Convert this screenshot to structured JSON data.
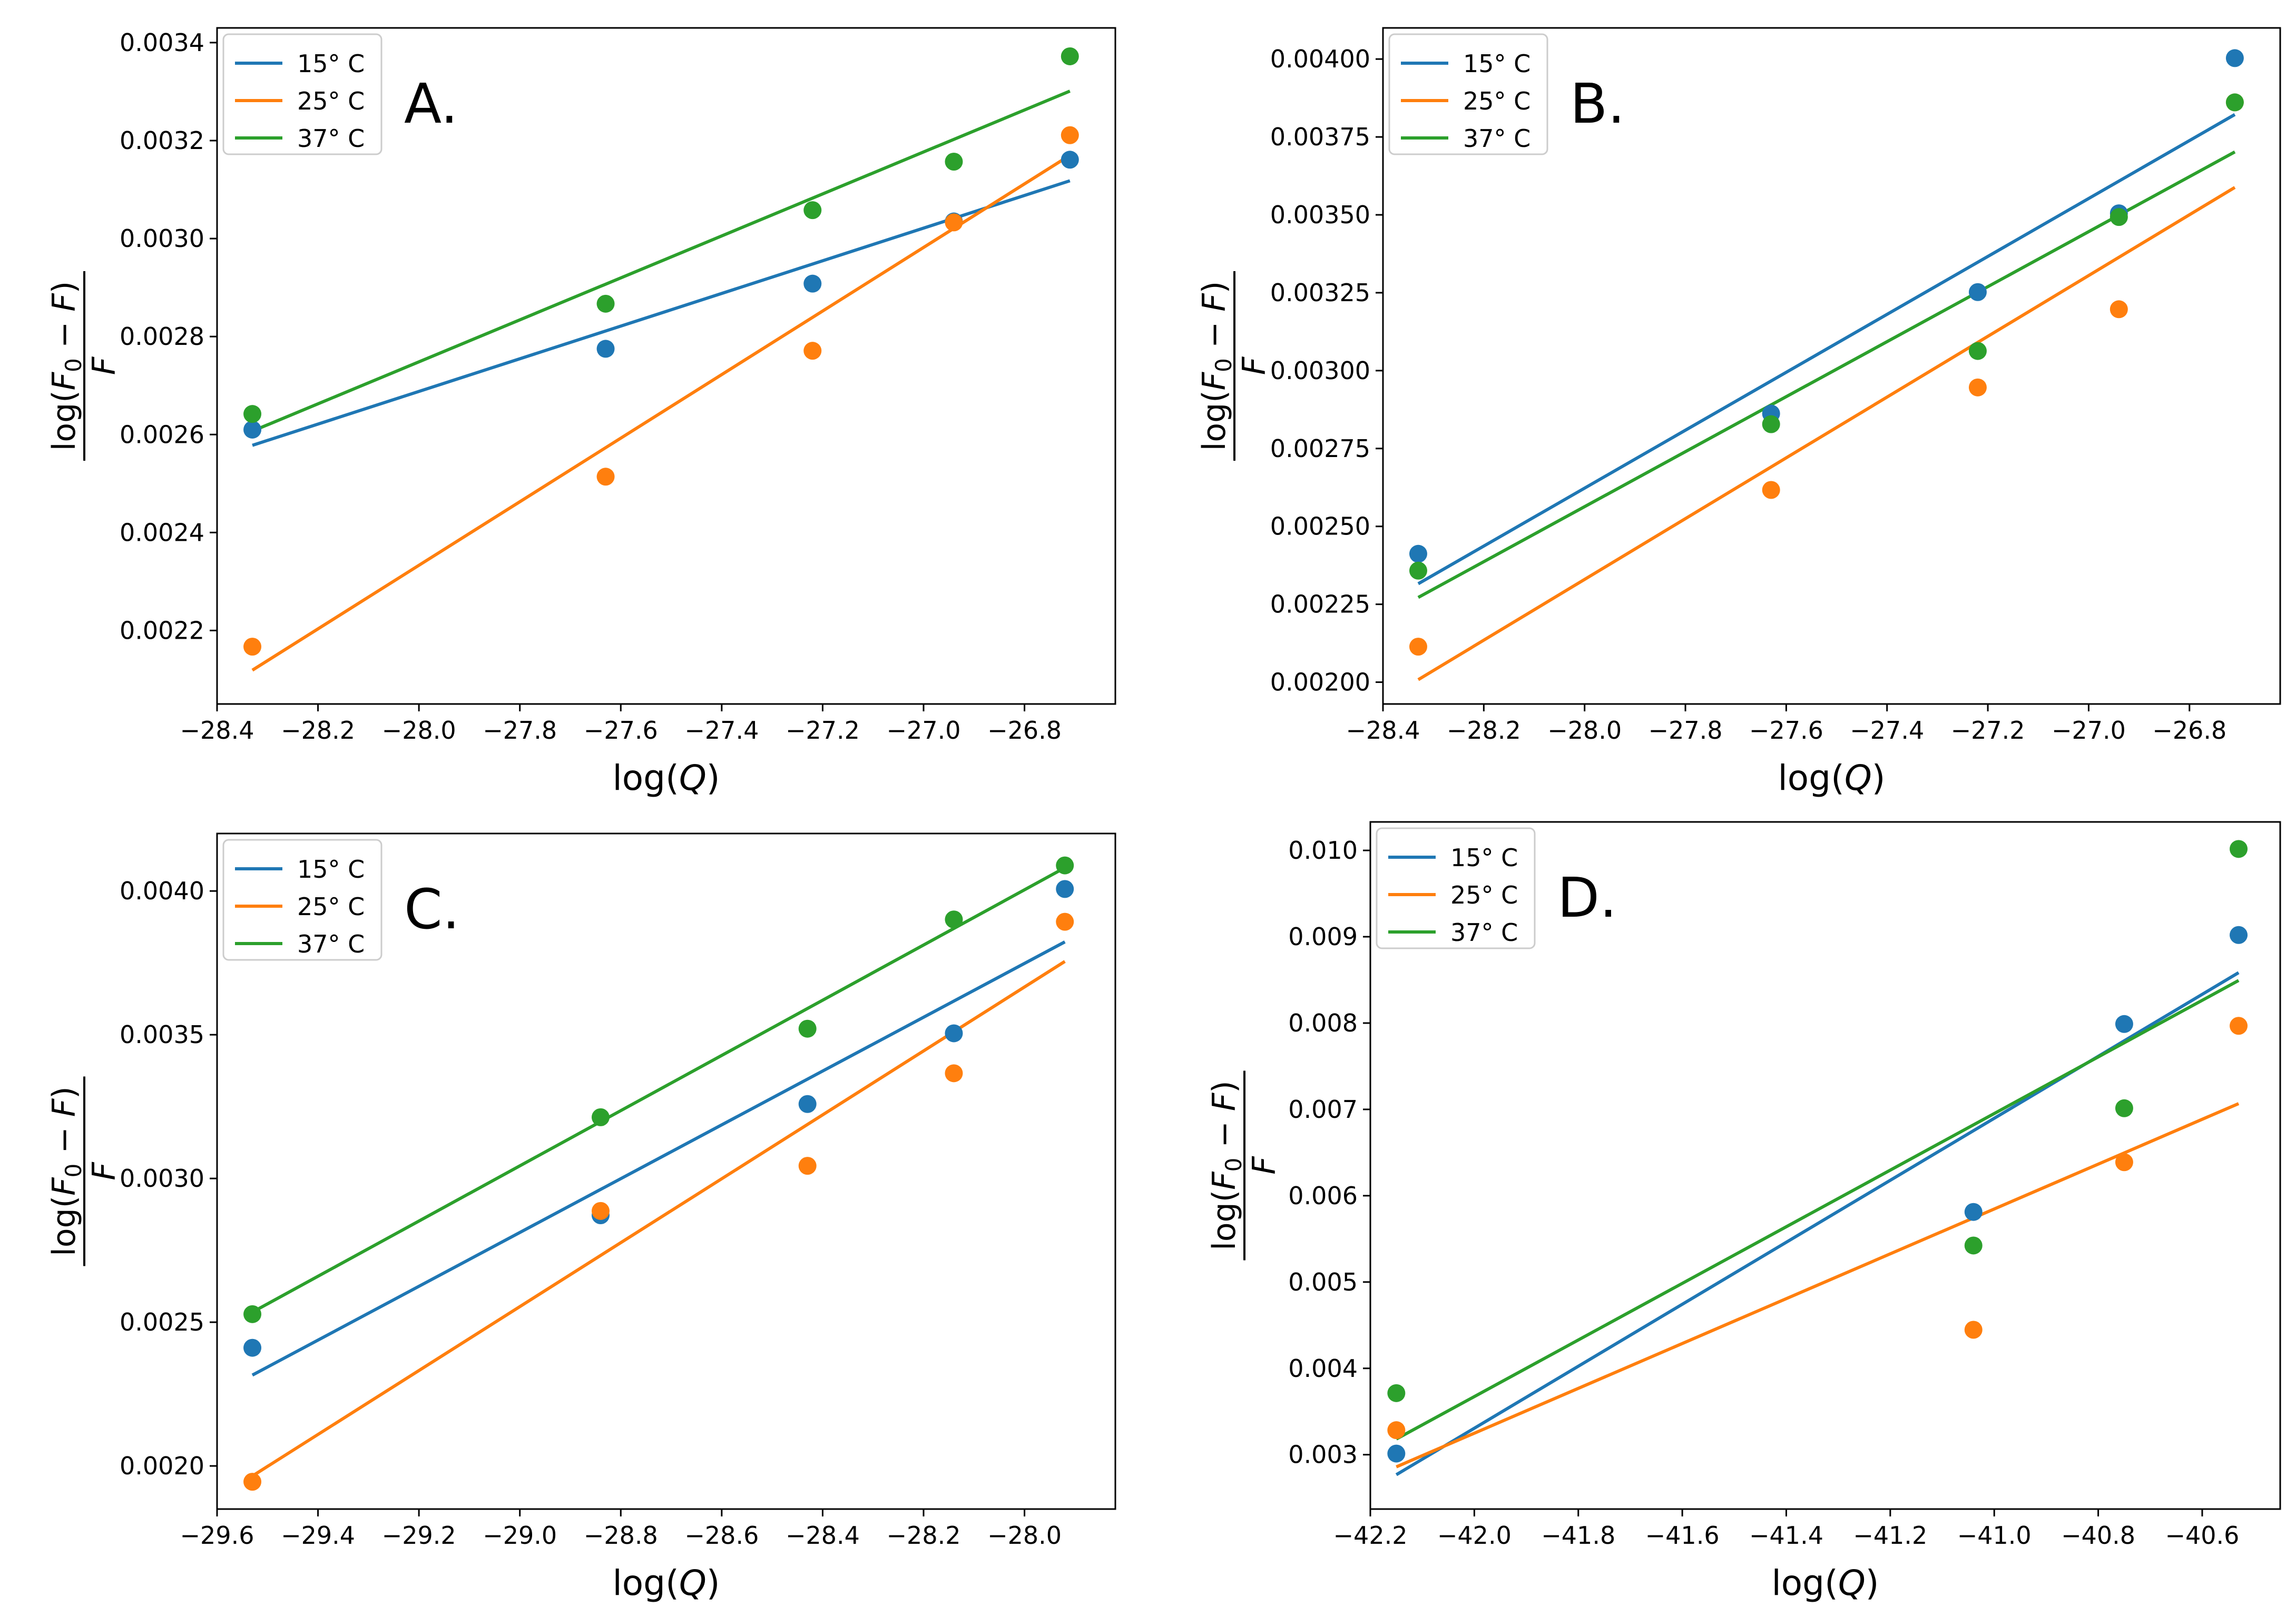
{
  "chart_data": [
    {
      "type": "scatter",
      "panel_label": "A.",
      "xlabel": "log(Q)",
      "ylabel": "log(F0 − F) / F",
      "ylabel_parts": {
        "main": "log(",
        "F": "F",
        "sub": "0",
        "rest": " − F)",
        "den": "F"
      },
      "legend_position": "top-left",
      "xlim": [
        -28.4,
        -26.62
      ],
      "ylim": [
        0.00205,
        0.00343
      ],
      "xticks": [
        -28.4,
        -28.2,
        -28.0,
        -27.8,
        -27.6,
        -27.4,
        -27.2,
        -27.0,
        -26.8
      ],
      "xtick_labels": [
        "−28.4",
        "−28.2",
        "−28.0",
        "−27.8",
        "−27.6",
        "−27.4",
        "−27.2",
        "−27.0",
        "−26.8"
      ],
      "yticks": [
        0.0022,
        0.0024,
        0.0026,
        0.0028,
        0.003,
        0.0032,
        0.0034
      ],
      "ytick_labels": [
        "0.0022",
        "0.0024",
        "0.0026",
        "0.0028",
        "0.0030",
        "0.0032",
        "0.0034"
      ],
      "x": [
        -28.33,
        -27.63,
        -27.22,
        -26.94,
        -26.71
      ],
      "series": [
        {
          "name": "15° C",
          "color": "#1f77b4",
          "values": [
            0.00261,
            0.002775,
            0.002908,
            0.003035,
            0.003161
          ],
          "fit": [
            0.002578,
            0.003118
          ]
        },
        {
          "name": "25° C",
          "color": "#ff7f0e",
          "values": [
            0.002167,
            0.002514,
            0.002771,
            0.003033,
            0.003211
          ],
          "fit": [
            0.002119,
            0.00317
          ]
        },
        {
          "name": "37° C",
          "color": "#2ca02c",
          "values": [
            0.002642,
            0.002867,
            0.003058,
            0.003157,
            0.003372
          ],
          "fit": [
            0.002607,
            0.003301
          ]
        }
      ]
    },
    {
      "type": "scatter",
      "panel_label": "B.",
      "xlabel": "log(Q)",
      "ylabel": "log(F0 − F) / F",
      "ylabel_parts": {
        "main": "log(",
        "F": "F",
        "sub": "0",
        "rest": " − F)",
        "den": "F"
      },
      "legend_position": "top-left",
      "xlim": [
        -28.4,
        -26.62
      ],
      "ylim": [
        0.00193,
        0.0041
      ],
      "xticks": [
        -28.4,
        -28.2,
        -28.0,
        -27.8,
        -27.6,
        -27.4,
        -27.2,
        -27.0,
        -26.8
      ],
      "xtick_labels": [
        "−28.4",
        "−28.2",
        "−28.0",
        "−27.8",
        "−27.6",
        "−27.4",
        "−27.2",
        "−27.0",
        "−26.8"
      ],
      "yticks": [
        0.002,
        0.00225,
        0.0025,
        0.00275,
        0.003,
        0.00325,
        0.0035,
        0.00375,
        0.004
      ],
      "ytick_labels": [
        "0.00200",
        "0.00225",
        "0.00250",
        "0.00275",
        "0.00300",
        "0.00325",
        "0.00350",
        "0.00375",
        "0.00400"
      ],
      "x": [
        -28.33,
        -27.63,
        -27.22,
        -26.94,
        -26.71
      ],
      "series": [
        {
          "name": "15° C",
          "color": "#1f77b4",
          "values": [
            0.002412,
            0.002862,
            0.003252,
            0.003505,
            0.004003
          ],
          "fit": [
            0.002316,
            0.003822
          ]
        },
        {
          "name": "25° C",
          "color": "#ff7f0e",
          "values": [
            0.002114,
            0.002617,
            0.002946,
            0.003197,
            0.003861
          ],
          "fit": [
            0.002008,
            0.003588
          ]
        },
        {
          "name": "37° C",
          "color": "#2ca02c",
          "values": [
            0.002358,
            0.002828,
            0.003063,
            0.003493,
            0.003861
          ],
          "fit": [
            0.002272,
            0.003702
          ]
        }
      ]
    },
    {
      "type": "scatter",
      "panel_label": "C.",
      "xlabel": "log(Q)",
      "ylabel": "log(F0 − F) / F",
      "ylabel_parts": {
        "main": "log(",
        "F": "F",
        "sub": "0",
        "rest": " − F)",
        "den": "F"
      },
      "legend_position": "top-left",
      "xlim": [
        -29.6,
        -27.82
      ],
      "ylim": [
        0.00185,
        0.0042
      ],
      "xticks": [
        -29.6,
        -29.4,
        -29.2,
        -29.0,
        -28.8,
        -28.6,
        -28.4,
        -28.2,
        -28.0
      ],
      "xtick_labels": [
        "−29.6",
        "−29.4",
        "−29.2",
        "−29.0",
        "−28.8",
        "−28.6",
        "−28.4",
        "−28.2",
        "−28.0"
      ],
      "yticks": [
        0.002,
        0.0025,
        0.003,
        0.0035,
        0.004
      ],
      "ytick_labels": [
        "0.0020",
        "0.0025",
        "0.0030",
        "0.0035",
        "0.0040"
      ],
      "x": [
        -29.53,
        -28.84,
        -28.43,
        -28.14,
        -27.92
      ],
      "series": [
        {
          "name": "15° C",
          "color": "#1f77b4",
          "values": [
            0.002411,
            0.002872,
            0.003259,
            0.003505,
            0.004007
          ],
          "fit": [
            0.002316,
            0.003823
          ]
        },
        {
          "name": "25° C",
          "color": "#ff7f0e",
          "values": [
            0.001945,
            0.002887,
            0.003044,
            0.003366,
            0.003893
          ],
          "fit": [
            0.001965,
            0.003755
          ]
        },
        {
          "name": "37° C",
          "color": "#2ca02c",
          "values": [
            0.002528,
            0.003213,
            0.003521,
            0.003901,
            0.004089
          ],
          "fit": [
            0.002535,
            0.004081
          ]
        }
      ]
    },
    {
      "type": "scatter",
      "panel_label": "D.",
      "xlabel": "log(Q)",
      "ylabel": "log(F0 − F) / F",
      "ylabel_parts": {
        "main": "log(",
        "F": "F",
        "sub": "0",
        "rest": " − F)",
        "den": "F"
      },
      "legend_position": "top-left",
      "xlim": [
        -42.2,
        -40.45
      ],
      "ylim": [
        0.00237,
        0.01033
      ],
      "xticks": [
        -42.2,
        -42.0,
        -41.8,
        -41.6,
        -41.4,
        -41.2,
        -41.0,
        -40.8,
        -40.6
      ],
      "xtick_labels": [
        "−42.2",
        "−42.0",
        "−41.8",
        "−41.6",
        "−41.4",
        "−41.2",
        "−41.0",
        "−40.8",
        "−40.6"
      ],
      "yticks": [
        0.003,
        0.004,
        0.005,
        0.006,
        0.007,
        0.008,
        0.009,
        0.01
      ],
      "ytick_labels": [
        "0.003",
        "0.004",
        "0.005",
        "0.006",
        "0.007",
        "0.008",
        "0.009",
        "0.010"
      ],
      "x": [
        -42.15,
        -41.04,
        -40.75,
        -40.53
      ],
      "series": [
        {
          "name": "15° C",
          "color": "#1f77b4",
          "values": [
            0.003013,
            0.005812,
            0.007989,
            0.00902
          ],
          "fit": [
            0.002768,
            0.008584
          ]
        },
        {
          "name": "25° C",
          "color": "#ff7f0e",
          "values": [
            0.003284,
            0.004447,
            0.006388,
            0.007968
          ],
          "fit": [
            0.002859,
            0.007067
          ]
        },
        {
          "name": "37° C",
          "color": "#2ca02c",
          "values": [
            0.003713,
            0.005423,
            0.007013,
            0.010017
          ],
          "fit": [
            0.003181,
            0.008493
          ]
        }
      ]
    }
  ]
}
